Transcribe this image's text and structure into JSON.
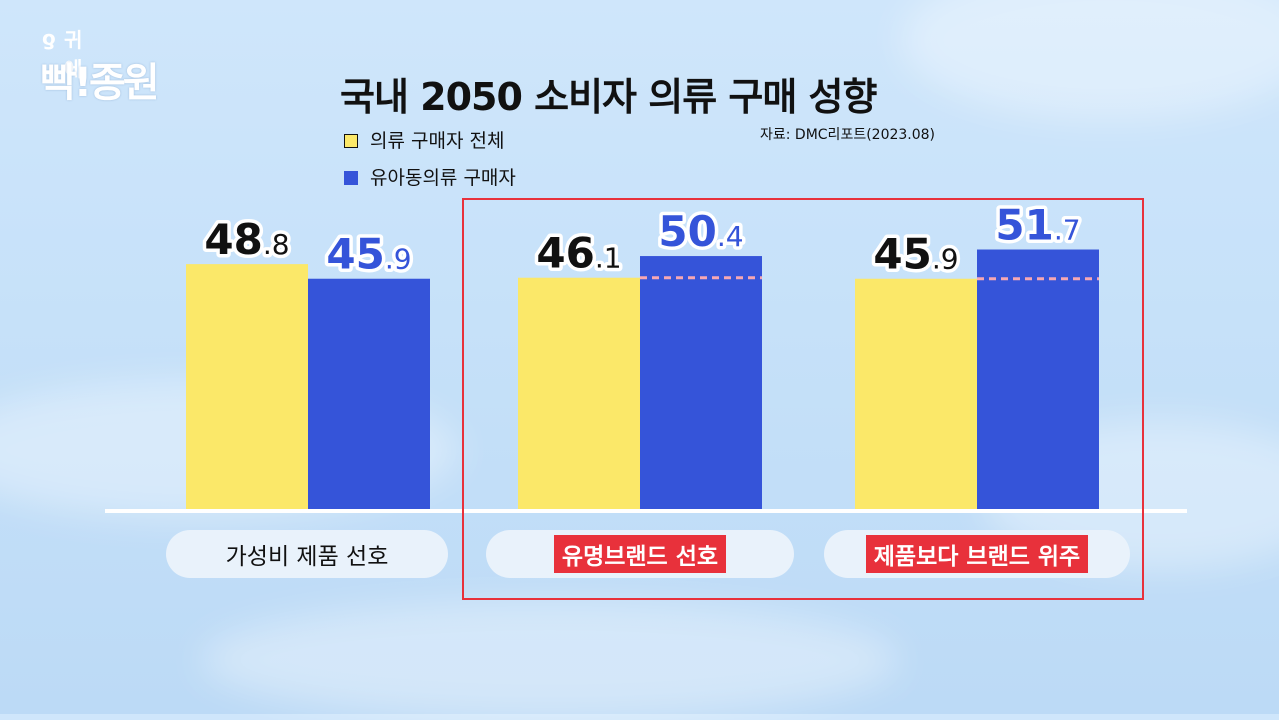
{
  "logo": {
    "line1": "귀에",
    "line2": "빡!종원",
    "icon": "ear-icon"
  },
  "chart_data": {
    "type": "bar",
    "title": "국내 2050 소비자 의류 구매 성향",
    "source": "자료: DMC리포트(2023.08)",
    "categories": [
      "가성비 제품 선호",
      "유명브랜드 선호",
      "제품보다 브랜드 위주"
    ],
    "highlighted_categories": [
      "유명브랜드 선호",
      "제품보다 브랜드 위주"
    ],
    "series": [
      {
        "name": "의류 구매자 전체",
        "color": "#fbe869",
        "values": [
          48.8,
          46.1,
          45.9
        ]
      },
      {
        "name": "유아동의류 구매자",
        "color": "#3554d9",
        "values": [
          45.9,
          50.4,
          51.7
        ]
      }
    ],
    "ylim": [
      0,
      52
    ],
    "legend_position": "top-left",
    "grid": false
  }
}
